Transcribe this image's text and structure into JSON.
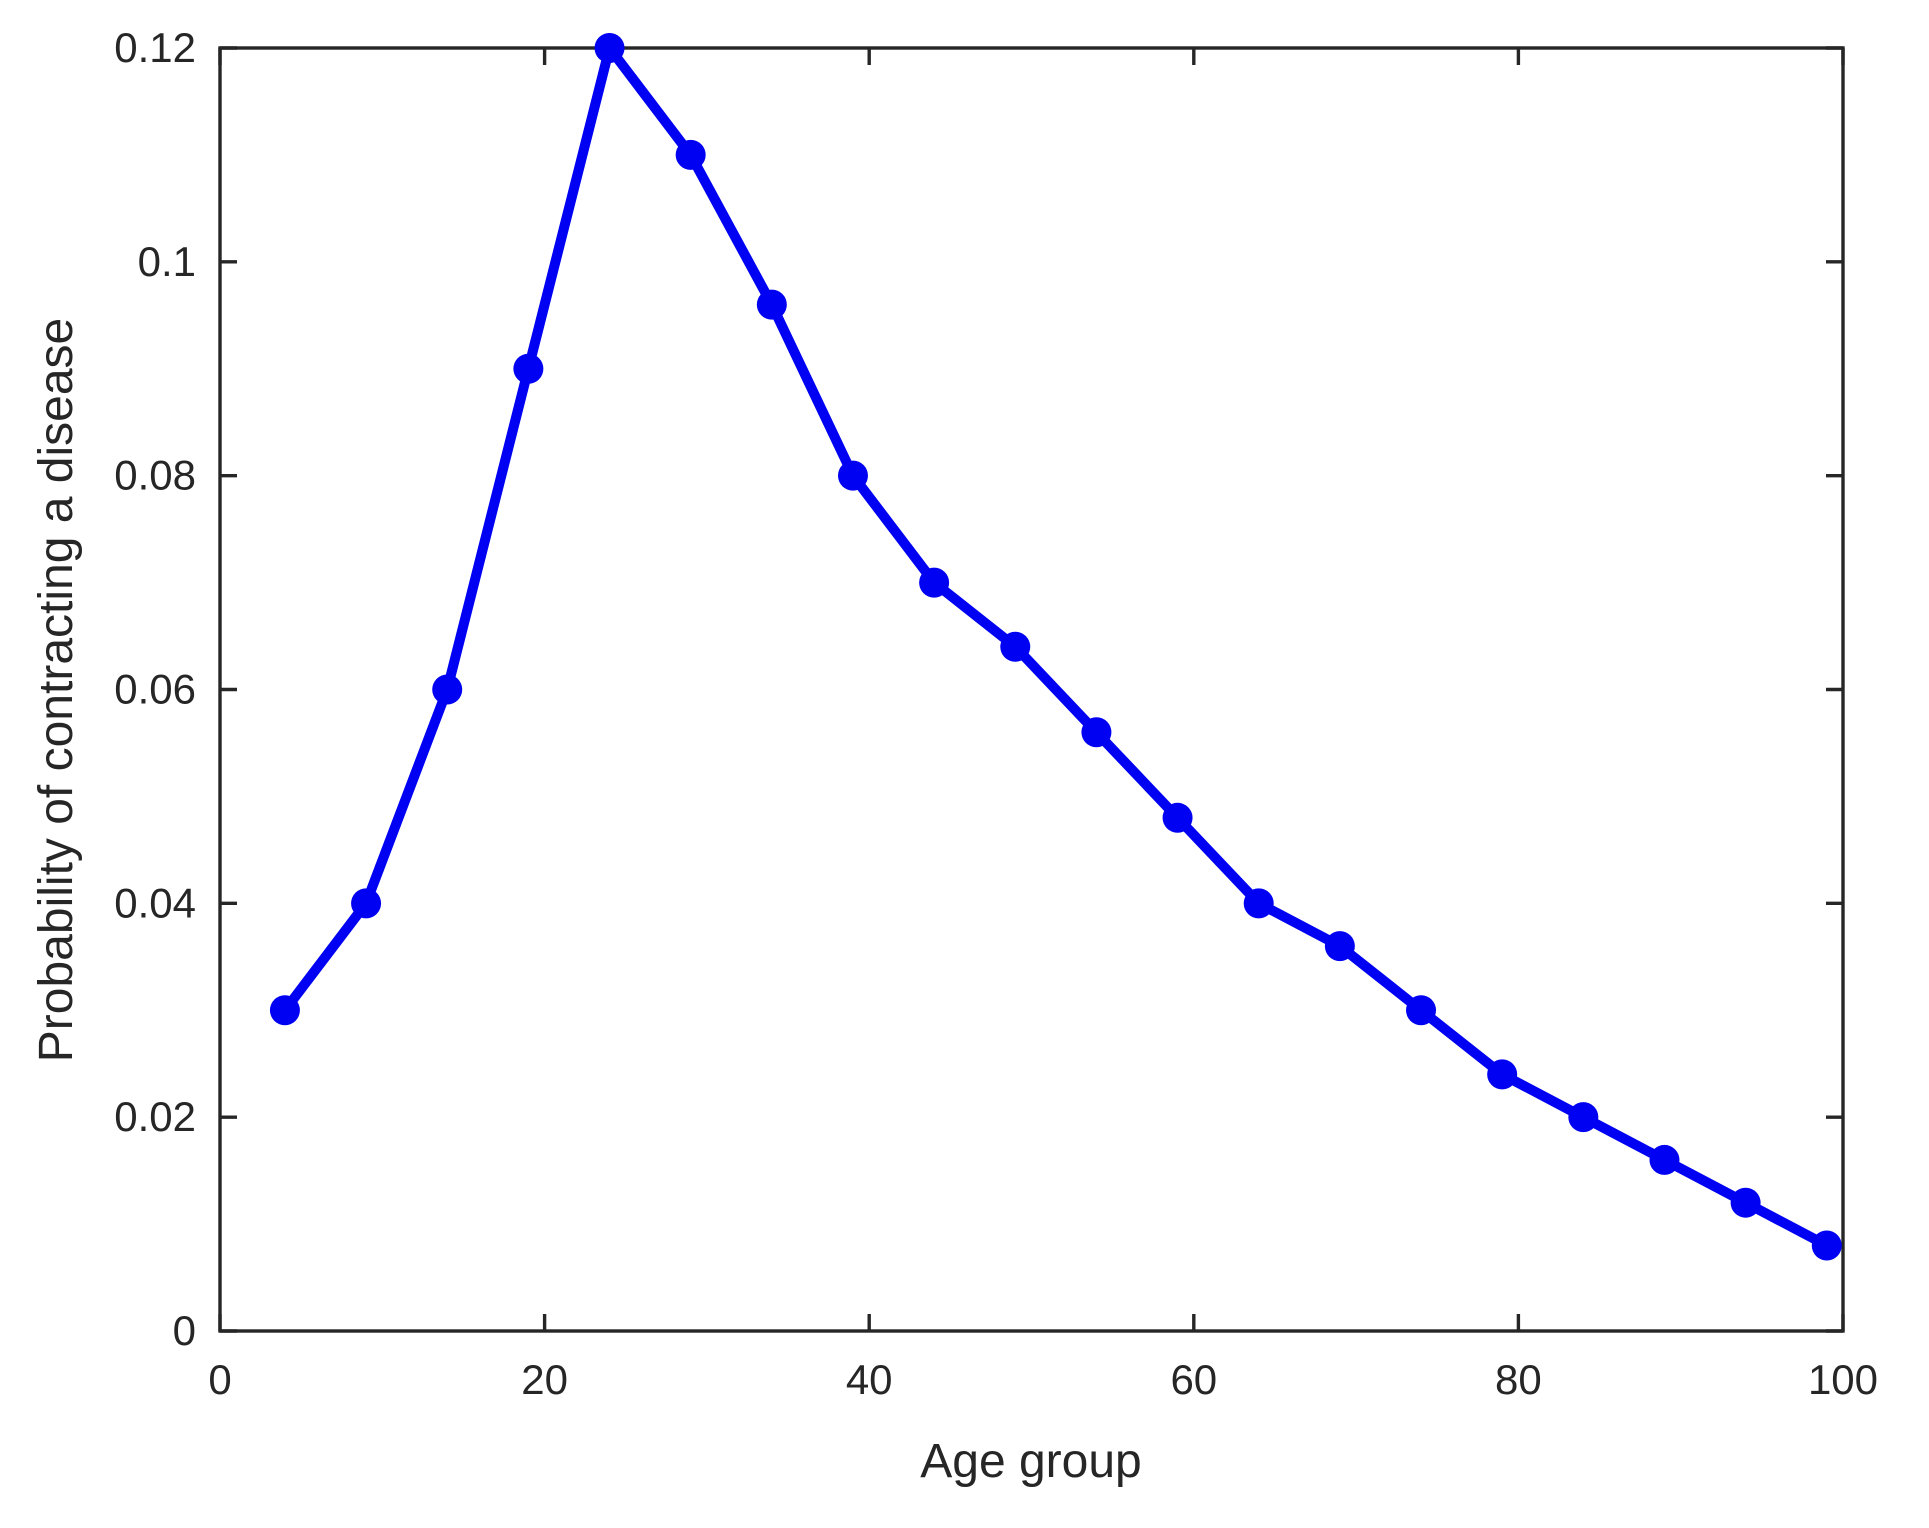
{
  "figure": {
    "background_color": "#ffffff",
    "axis_color": "#262626",
    "series_color": "#0000F2"
  },
  "chart_data": {
    "type": "line",
    "title": "",
    "xlabel": "Age group",
    "ylabel": "Probability of contracting a disease",
    "x": [
      4,
      9,
      14,
      19,
      24,
      29,
      34,
      39,
      44,
      49,
      54,
      59,
      64,
      69,
      74,
      79,
      84,
      89,
      94,
      99
    ],
    "y": [
      0.03,
      0.04,
      0.06,
      0.09,
      0.12,
      0.11,
      0.096,
      0.08,
      0.07,
      0.064,
      0.056,
      0.048,
      0.04,
      0.036,
      0.03,
      0.024,
      0.02,
      0.016,
      0.012,
      0.008
    ],
    "xlim": [
      0,
      100
    ],
    "ylim": [
      0,
      0.12
    ],
    "xticks": {
      "values": [
        0,
        20,
        40,
        60,
        80,
        100
      ],
      "labels": [
        "0",
        "20",
        "40",
        "60",
        "80",
        "100"
      ]
    },
    "yticks": {
      "values": [
        0,
        0.02,
        0.04,
        0.06,
        0.08,
        0.1,
        0.12
      ],
      "labels": [
        "0",
        "0.02",
        "0.04",
        "0.06",
        "0.08",
        "0.1",
        "0.12"
      ]
    },
    "grid": false,
    "box": true,
    "tick_direction": "in",
    "legend_position": "none",
    "marker": "filled-circle",
    "line_color": "#0000F2",
    "marker_color": "#0000F2"
  }
}
